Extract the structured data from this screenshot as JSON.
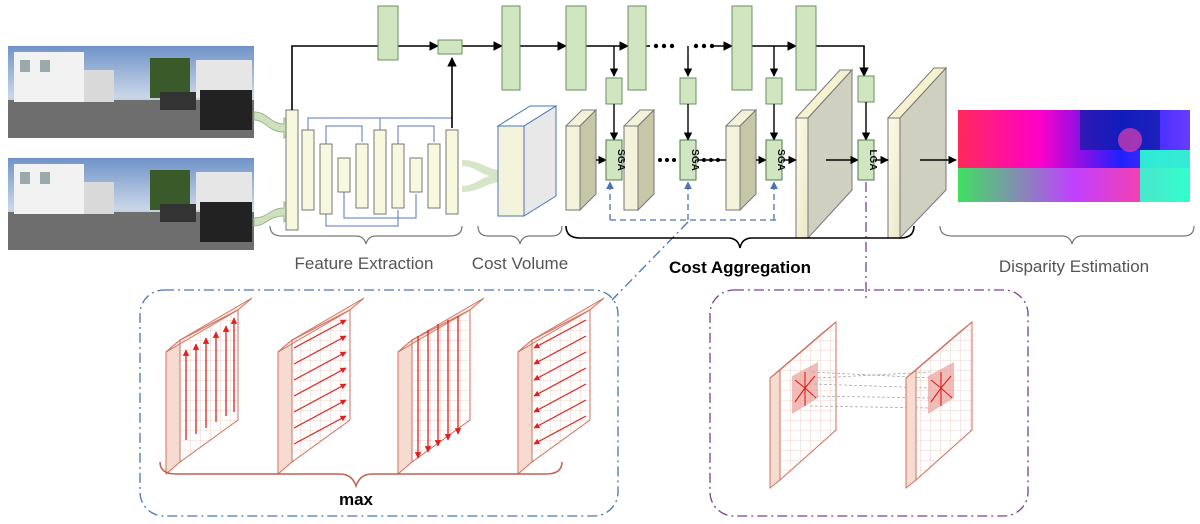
{
  "labels": {
    "feature_extraction": "Feature Extraction",
    "cost_volume": "Cost Volume",
    "cost_aggregation": "Cost Aggregation",
    "disparity_estimation": "Disparity Estimation",
    "max": "max"
  },
  "modules": {
    "sga": "SGA",
    "lga": "LGA"
  },
  "colors": {
    "green_block": "#cfe6c1",
    "green_border": "#6b8f5e",
    "volume_front": "#f3f3dc",
    "feature_block": "#f7f8dd",
    "blue_dash": "#4a74b4",
    "purple_dash": "#7a3f97",
    "red_arrow": "#e02020",
    "slab_fill": "#f9e4d8",
    "slab_edge": "#d07060"
  }
}
